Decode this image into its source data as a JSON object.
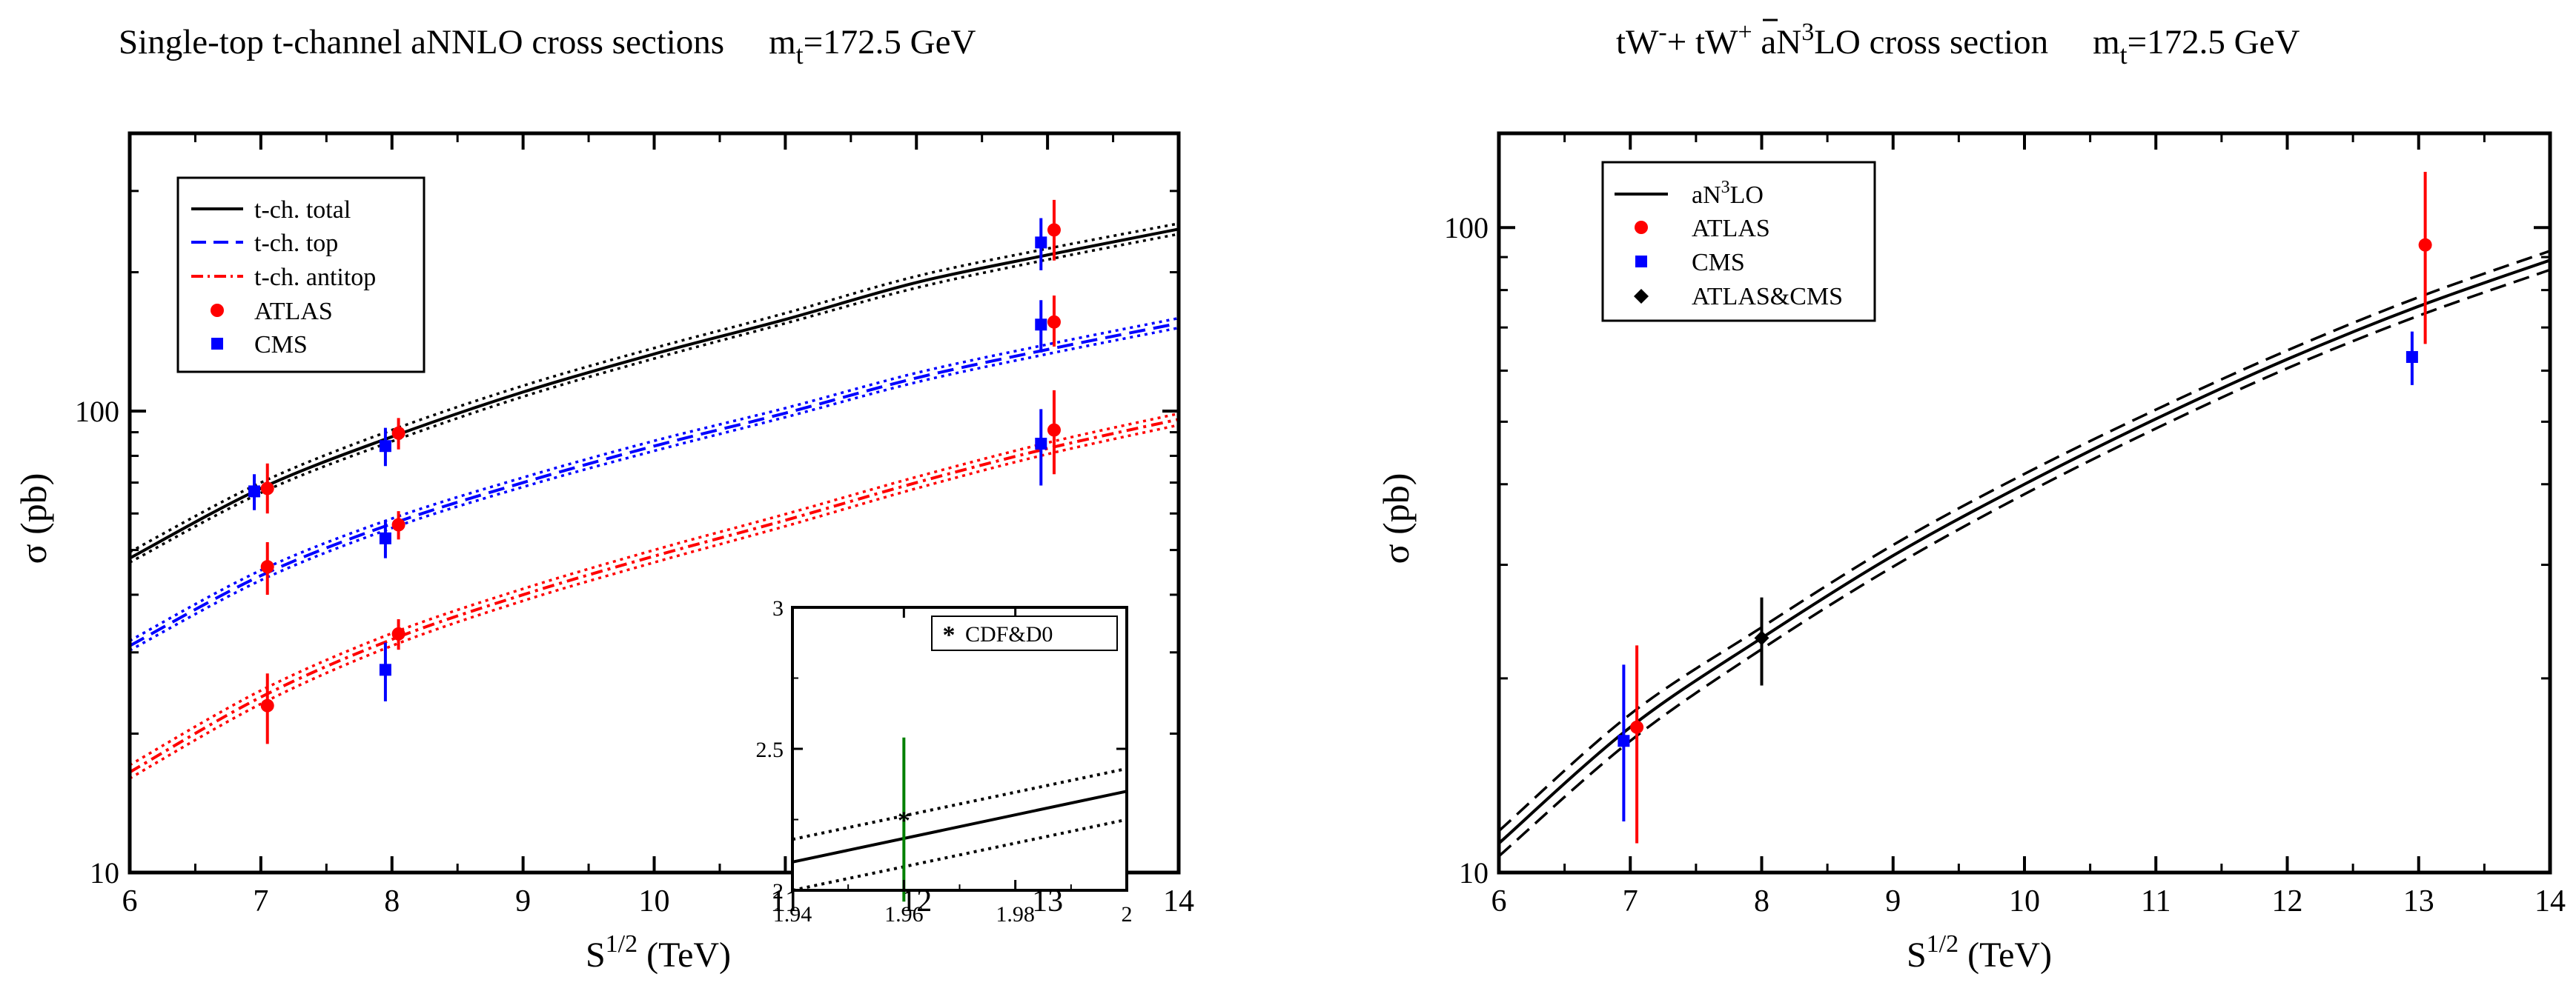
{
  "chart_data": [
    {
      "type": "line",
      "title": "Single-top t-channel aNNLO cross sections",
      "title_mass": "m",
      "title_mass_sub": "t",
      "title_mass_value": "=172.5 GeV",
      "xlabel": "S",
      "xlabel_sup": "1/2",
      "xlabel_unit": " (TeV)",
      "ylabel": "σ (pb)",
      "yscale": "log",
      "xlim": [
        6,
        14
      ],
      "ylim": [
        10,
        400
      ],
      "x_ticks": [
        6,
        7,
        8,
        9,
        10,
        11,
        12,
        13,
        14
      ],
      "x_tick_labels": [
        "6",
        "7",
        "8",
        "9",
        "10",
        "11",
        "12",
        "13",
        "14"
      ],
      "y_ticks": [
        10,
        100
      ],
      "y_tick_labels": [
        "10",
        "100"
      ],
      "curve_x": [
        6,
        7,
        8,
        9,
        10,
        11,
        12,
        13,
        14
      ],
      "series": [
        {
          "name": "t-ch. total",
          "style": "solid",
          "color": "#000000",
          "y": [
            48.0,
            68.0,
            88.0,
            110.0,
            133.0,
            158.0,
            190.0,
            218.0,
            248.0
          ],
          "y_low": [
            47.0,
            66.5,
            86.0,
            107.5,
            130.0,
            155.0,
            185.0,
            213.0,
            242.0
          ],
          "y_high": [
            49.5,
            70.0,
            91.0,
            113.5,
            137.0,
            163.0,
            196.0,
            225.0,
            255.0
          ]
        },
        {
          "name": "t-ch. top",
          "style": "dash",
          "color": "#0000ff",
          "y": [
            31.0,
            44.0,
            57.0,
            70.0,
            84.0,
            99.0,
            118.0,
            136.0,
            155.0
          ],
          "y_low": [
            30.3,
            43.0,
            55.8,
            68.5,
            82.0,
            97.0,
            115.5,
            133.0,
            151.5
          ],
          "y_high": [
            31.8,
            45.2,
            58.5,
            71.8,
            86.2,
            101.5,
            121.0,
            139.5,
            159.0
          ]
        },
        {
          "name": "t-ch. antitop",
          "style": "dashdot",
          "color": "#ff0000",
          "y": [
            16.5,
            24.0,
            32.0,
            40.0,
            48.5,
            58.0,
            70.0,
            83.0,
            96.0
          ],
          "y_low": [
            16.0,
            23.2,
            31.0,
            38.8,
            47.0,
            56.3,
            68.0,
            80.7,
            93.3
          ],
          "y_high": [
            17.1,
            24.8,
            33.0,
            41.2,
            50.0,
            59.8,
            72.0,
            85.4,
            98.8
          ]
        }
      ],
      "points": [
        {
          "name": "ATLAS",
          "marker": "circle",
          "color": "#ff0000",
          "data": [
            {
              "x": 7.05,
              "y": 68,
              "err_lo": 8,
              "err_hi": 9
            },
            {
              "x": 8.05,
              "y": 89.6,
              "err_lo": 7,
              "err_hi": 7
            },
            {
              "x": 13.05,
              "y": 247,
              "err_lo": 35,
              "err_hi": 40
            },
            {
              "x": 7.05,
              "y": 46,
              "err_lo": 6,
              "err_hi": 6
            },
            {
              "x": 8.05,
              "y": 56.7,
              "err_lo": 4,
              "err_hi": 4
            },
            {
              "x": 13.05,
              "y": 156,
              "err_lo": 18,
              "err_hi": 22
            },
            {
              "x": 7.05,
              "y": 23,
              "err_lo": 4,
              "err_hi": 4
            },
            {
              "x": 8.05,
              "y": 32.9,
              "err_lo": 2.5,
              "err_hi": 2.5
            },
            {
              "x": 13.05,
              "y": 91,
              "err_lo": 18,
              "err_hi": 20
            }
          ]
        },
        {
          "name": "CMS",
          "marker": "square",
          "color": "#0000ff",
          "data": [
            {
              "x": 6.95,
              "y": 67,
              "err_lo": 6,
              "err_hi": 6
            },
            {
              "x": 7.95,
              "y": 84,
              "err_lo": 8,
              "err_hi": 8
            },
            {
              "x": 12.95,
              "y": 232,
              "err_lo": 30,
              "err_hi": 30
            },
            {
              "x": 7.95,
              "y": 53,
              "err_lo": 5,
              "err_hi": 5
            },
            {
              "x": 12.95,
              "y": 154,
              "err_lo": 20,
              "err_hi": 20
            },
            {
              "x": 7.95,
              "y": 27.5,
              "err_lo": 4,
              "err_hi": 4
            },
            {
              "x": 12.95,
              "y": 85,
              "err_lo": 16,
              "err_hi": 16
            }
          ]
        }
      ],
      "legend": [
        "t-ch. total",
        "t-ch. top",
        "t-ch. antitop",
        "ATLAS",
        "CMS"
      ],
      "inset": {
        "xlim": [
          1.94,
          2.0
        ],
        "ylim": [
          2.0,
          3.0
        ],
        "x_ticks": [
          1.94,
          1.96,
          1.98,
          2.0
        ],
        "x_tick_labels": [
          "1.94",
          "1.96",
          "1.98",
          "2"
        ],
        "y_ticks": [
          2.0,
          2.5,
          3.0
        ],
        "y_tick_labels": [
          "2",
          "2.5",
          "3"
        ],
        "curve_x": [
          1.94,
          2.0
        ],
        "y": [
          2.1,
          2.35
        ],
        "y_low": [
          2.0,
          2.25
        ],
        "y_high": [
          2.18,
          2.43
        ],
        "point": {
          "name": "CDF&D0",
          "color": "#008000",
          "x": 1.96,
          "y": 2.25,
          "err_lo": 0.29,
          "err_hi": 0.29
        }
      }
    },
    {
      "type": "line",
      "title": "tW",
      "title_sup1": "-",
      "title_plus": "+ ",
      "title_tbar": "t",
      "title_w2": "W",
      "title_sup2": "+",
      "title_rest": "  aN",
      "title_sup3": "3",
      "title_end": "LO cross section",
      "title_mass": "m",
      "title_mass_sub": "t",
      "title_mass_value": "=172.5 GeV",
      "xlabel": "S",
      "xlabel_sup": "1/2",
      "xlabel_unit": " (TeV)",
      "ylabel": "σ (pb)",
      "yscale": "log",
      "xlim": [
        6,
        14
      ],
      "ylim": [
        10,
        140
      ],
      "x_ticks": [
        6,
        7,
        8,
        9,
        10,
        11,
        12,
        13,
        14
      ],
      "x_tick_labels": [
        "6",
        "7",
        "8",
        "9",
        "10",
        "11",
        "12",
        "13",
        "14"
      ],
      "y_ticks": [
        10,
        100
      ],
      "y_tick_labels": [
        "10",
        "100"
      ],
      "curve_x": [
        6,
        7,
        8,
        9,
        10,
        11,
        12,
        13,
        14
      ],
      "series": [
        {
          "name": "aN3LO",
          "style": "solid",
          "color": "#000000",
          "y": [
            11.1,
            16.8,
            23.1,
            31.0,
            40.0,
            50.5,
            62.5,
            75.5,
            89.0
          ],
          "y_low": [
            10.6,
            16.0,
            22.2,
            29.8,
            38.6,
            48.8,
            60.5,
            73.0,
            86.0
          ],
          "y_high": [
            11.6,
            17.6,
            24.0,
            32.2,
            41.5,
            52.2,
            64.5,
            78.0,
            92.0
          ]
        }
      ],
      "points": [
        {
          "name": "ATLAS",
          "marker": "circle",
          "color": "#ff0000",
          "data": [
            {
              "x": 7.05,
              "y": 16.8,
              "err_lo": 5.7,
              "err_hi": 5.7
            },
            {
              "x": 13.05,
              "y": 94,
              "err_lo": 28,
              "err_hi": 28
            }
          ]
        },
        {
          "name": "CMS",
          "marker": "square",
          "color": "#0000ff",
          "data": [
            {
              "x": 6.95,
              "y": 16,
              "err_lo": 4,
              "err_hi": 5
            },
            {
              "x": 12.95,
              "y": 63,
              "err_lo": 6,
              "err_hi": 6
            }
          ]
        },
        {
          "name": "ATLAS&CMS",
          "marker": "diamond",
          "color": "#000000",
          "data": [
            {
              "x": 8.0,
              "y": 23.1,
              "err_lo": 3.6,
              "err_hi": 3.6
            }
          ]
        }
      ],
      "legend": [
        "aN3LO",
        "ATLAS",
        "CMS",
        "ATLAS&CMS"
      ],
      "legend_label_main": "aN",
      "legend_label_sup": "3",
      "legend_label_end": "LO"
    }
  ]
}
